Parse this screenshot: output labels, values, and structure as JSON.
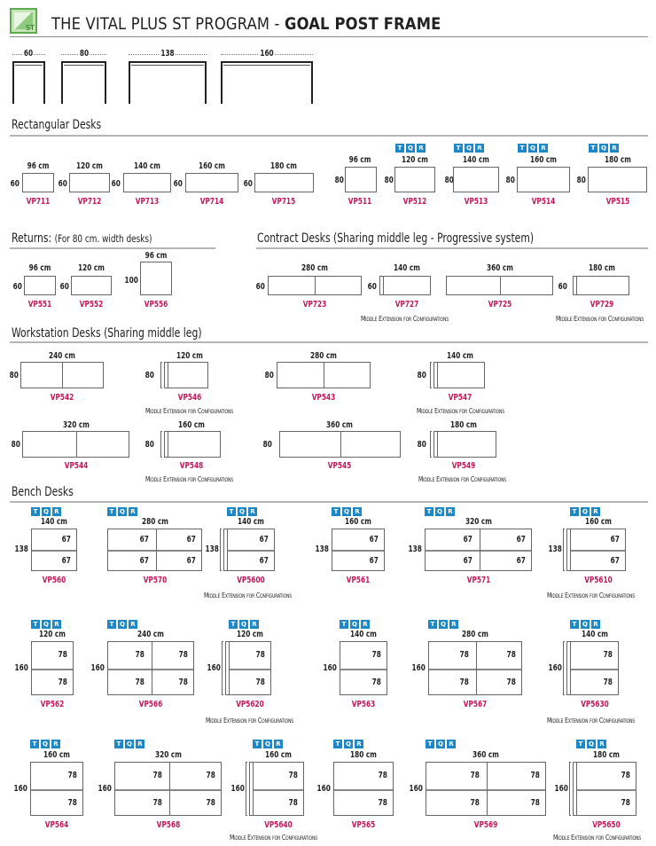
{
  "header": {
    "logo_text": "ST",
    "title_light": "THE VITAL PLUS ST PROGRAM - ",
    "title_bold": "GOAL POST FRAME"
  },
  "frames": [
    "60",
    "80",
    "138",
    "160"
  ],
  "sections": {
    "rect": "Rectangular Desks",
    "returns": "Returns:",
    "returns_note": "(For 80 cm. width desks)",
    "contract": "Contract Desks (Sharing middle leg - Progressive system)",
    "work": "Workstation Desks (Sharing middle leg)",
    "bench": "Bench Desks"
  },
  "badge": [
    "T",
    "Q",
    "R"
  ],
  "note": "Middle Extension for Configurations",
  "rect60": [
    {
      "w": "96 cm",
      "h": "60",
      "code": "VP711"
    },
    {
      "w": "120 cm",
      "h": "60",
      "code": "VP712"
    },
    {
      "w": "140 cm",
      "h": "60",
      "code": "VP713"
    },
    {
      "w": "160 cm",
      "h": "60",
      "code": "VP714"
    },
    {
      "w": "180 cm",
      "h": "60",
      "code": "VP715"
    }
  ],
  "rect80": [
    {
      "w": "96 cm",
      "h": "80",
      "code": "VP511"
    },
    {
      "w": "120 cm",
      "h": "80",
      "code": "VP512"
    },
    {
      "w": "140 cm",
      "h": "80",
      "code": "VP513"
    },
    {
      "w": "160 cm",
      "h": "80",
      "code": "VP514"
    },
    {
      "w": "180 cm",
      "h": "80",
      "code": "VP515"
    }
  ],
  "returns": [
    {
      "w": "96 cm",
      "h": "60",
      "code": "VP551"
    },
    {
      "w": "120 cm",
      "h": "60",
      "code": "VP552"
    },
    {
      "w": "96 cm",
      "h": "100",
      "code": "VP556"
    }
  ],
  "contract": [
    {
      "w": "280 cm",
      "h": "60",
      "code": "VP723"
    },
    {
      "w": "140 cm",
      "h": "60",
      "code": "VP727"
    },
    {
      "w": "360 cm",
      "code": "VP725"
    },
    {
      "w": "180 cm",
      "h": "60",
      "code": "VP729"
    }
  ],
  "work": [
    {
      "w": "240 cm",
      "h": "80",
      "code": "VP542"
    },
    {
      "w": "120 cm",
      "h": "80",
      "code": "VP546"
    },
    {
      "w": "280 cm",
      "h": "80",
      "code": "VP543"
    },
    {
      "w": "140 cm",
      "h": "80",
      "code": "VP547"
    },
    {
      "w": "320 cm",
      "h": "80",
      "code": "VP544"
    },
    {
      "w": "160 cm",
      "h": "80",
      "code": "VP548"
    },
    {
      "w": "360 cm",
      "h": "80",
      "code": "VP545"
    },
    {
      "w": "180 cm",
      "h": "80",
      "code": "VP549"
    }
  ],
  "bench138": [
    {
      "w": "140 cm",
      "h": "138",
      "d": "67",
      "code": "VP560"
    },
    {
      "w": "280 cm",
      "d": "67",
      "code": "VP570"
    },
    {
      "w": "140 cm",
      "h": "138",
      "d": "67",
      "code": "VP5600"
    },
    {
      "w": "160 cm",
      "h": "138",
      "d": "67",
      "code": "VP561"
    },
    {
      "w": "320 cm",
      "h": "138",
      "d": "67",
      "code": "VP571"
    },
    {
      "w": "160 cm",
      "h": "138",
      "d": "67",
      "code": "VP5610"
    }
  ],
  "bench160a": [
    {
      "w": "120 cm",
      "h": "160",
      "d": "78",
      "code": "VP562"
    },
    {
      "w": "240 cm",
      "h": "160",
      "d": "78",
      "code": "VP566"
    },
    {
      "w": "120 cm",
      "h": "160",
      "d": "78",
      "code": "VP5620"
    },
    {
      "w": "140 cm",
      "h": "160",
      "d": "78",
      "code": "VP563"
    },
    {
      "w": "280 cm",
      "h": "160",
      "d": "78",
      "code": "VP567"
    },
    {
      "w": "140 cm",
      "h": "160",
      "d": "78",
      "code": "VP5630"
    }
  ],
  "bench160b": [
    {
      "w": "160 cm",
      "h": "160",
      "d": "78",
      "code": "VP564"
    },
    {
      "w": "320 cm",
      "h": "160",
      "d": "78",
      "code": "VP568"
    },
    {
      "w": "160 cm",
      "h": "160",
      "d": "78",
      "code": "VP5640"
    },
    {
      "w": "180 cm",
      "h": "160",
      "d": "78",
      "code": "VP565"
    },
    {
      "w": "360 cm",
      "h": "160",
      "d": "78",
      "code": "VP569"
    },
    {
      "w": "180 cm",
      "h": "160",
      "d": "78",
      "code": "VP5650"
    }
  ]
}
